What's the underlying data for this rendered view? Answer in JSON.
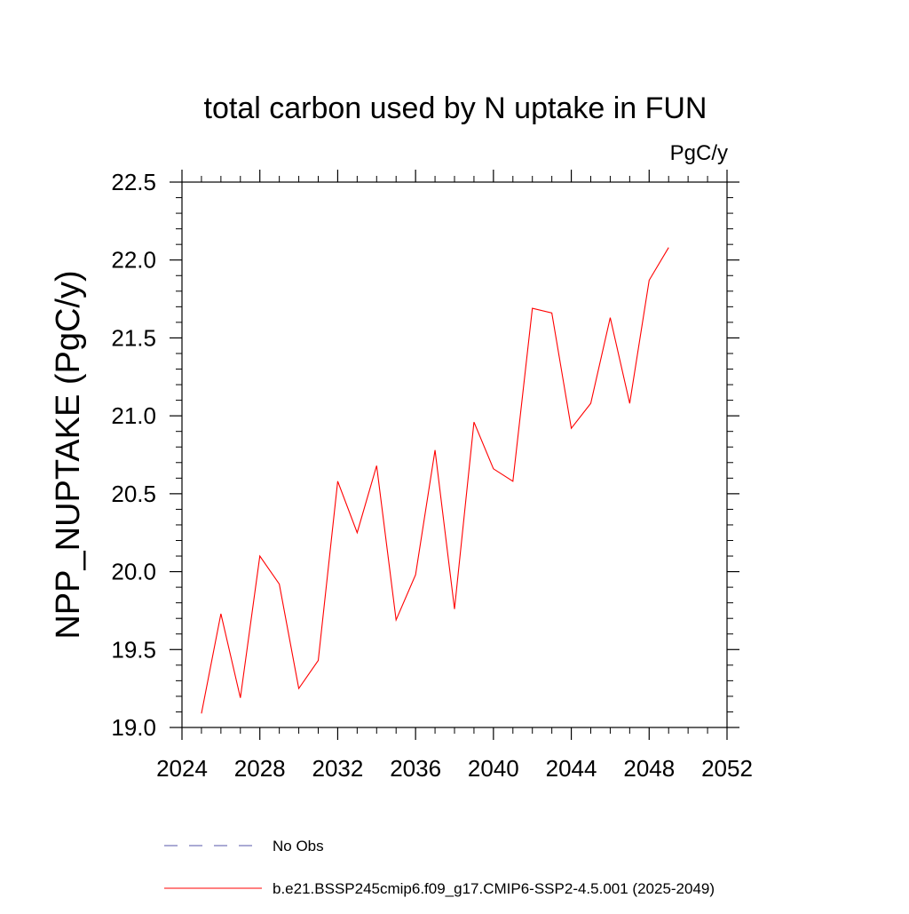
{
  "chart_data": {
    "type": "line",
    "title": "total carbon used by N uptake in FUN",
    "units": "PgC/y",
    "xlabel": "",
    "ylabel": "NPP_NUPTAKE  (PgC/y)",
    "xlim": [
      2024,
      2052
    ],
    "ylim": [
      19.0,
      22.5
    ],
    "x_ticks": [
      "2024",
      "2028",
      "2032",
      "2036",
      "2040",
      "2044",
      "2048",
      "2052"
    ],
    "y_ticks": [
      "19.0",
      "19.5",
      "20.0",
      "20.5",
      "21.0",
      "21.5",
      "22.0",
      "22.5"
    ],
    "grid": false,
    "series": [
      {
        "name": "b.e21.BSSP245cmip6.f09_g17.CMIP6-SSP2-4.5.001 (2025-2049)",
        "color": "#ff0000",
        "x": [
          2025,
          2026,
          2027,
          2028,
          2029,
          2030,
          2031,
          2032,
          2033,
          2034,
          2035,
          2036,
          2037,
          2038,
          2039,
          2040,
          2041,
          2042,
          2043,
          2044,
          2045,
          2046,
          2047,
          2048,
          2049
        ],
        "y": [
          19.09,
          19.73,
          19.19,
          20.1,
          19.92,
          19.25,
          19.43,
          20.58,
          20.25,
          20.68,
          19.69,
          19.98,
          20.78,
          19.76,
          20.96,
          20.66,
          20.58,
          21.69,
          21.66,
          20.92,
          21.08,
          21.63,
          21.08,
          21.87,
          22.08
        ]
      }
    ],
    "legend": {
      "placement": "bottom",
      "entries": [
        {
          "label": "No Obs",
          "style": "dashed",
          "color": "#5555aa"
        },
        {
          "label": "b.e21.BSSP245cmip6.f09_g17.CMIP6-SSP2-4.5.001 (2025-2049)",
          "style": "solid",
          "color": "#ff0000"
        }
      ]
    }
  }
}
